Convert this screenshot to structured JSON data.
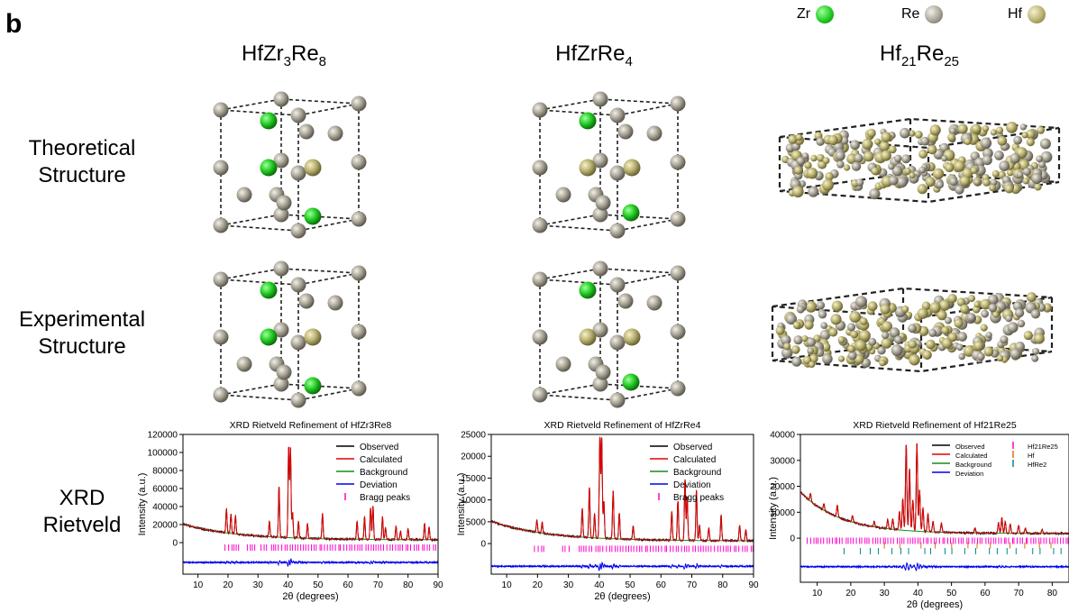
{
  "panel_label": "b",
  "legend": [
    {
      "label": "Zr",
      "color": "#22cc22"
    },
    {
      "label": "Re",
      "color": "#a8a394"
    },
    {
      "label": "Hf",
      "color": "#b8b070"
    }
  ],
  "columns": [
    {
      "formula": "HfZr",
      "sub1": "3",
      "mid": "Re",
      "sub2": "8",
      "plain": "HfZr3Re8"
    },
    {
      "formula": "HfZrRe",
      "sub1": "",
      "mid": "",
      "sub2": "4",
      "plain": "HfZrRe4"
    },
    {
      "formula": "Hf",
      "sub1": "21",
      "mid": "Re",
      "sub2": "25",
      "plain": "Hf21Re25"
    }
  ],
  "rows": {
    "theoretical": [
      "Theoretical",
      "Structure"
    ],
    "experimental": [
      "Experimental",
      "Structure"
    ],
    "xrd": [
      "XRD",
      "Rietveld"
    ]
  },
  "colors": {
    "re": "#a8a394",
    "zr": "#22cc22",
    "hf": "#b8b070"
  },
  "chart_data": [
    {
      "type": "line",
      "title": "XRD Rietveld Refinement of HfZr3Re8",
      "xlabel": "2θ (degrees)",
      "ylabel": "Intensity (a.u.)",
      "xlim": [
        5,
        90
      ],
      "ylim": [
        -35000,
        120000
      ],
      "yticks": [
        0,
        20000,
        40000,
        60000,
        80000,
        100000,
        120000
      ],
      "xticks": [
        10,
        20,
        30,
        40,
        50,
        60,
        70,
        80,
        90
      ],
      "legend": [
        "Observed",
        "Calculated",
        "Background",
        "Deviation",
        "Bragg peaks"
      ],
      "background": {
        "a": 17500,
        "b": 3000,
        "tau": 18
      },
      "peaks": [
        [
          19.5,
          26000
        ],
        [
          21,
          21000
        ],
        [
          22.5,
          20000
        ],
        [
          33.8,
          17000
        ],
        [
          37,
          56000
        ],
        [
          40.2,
          100000
        ],
        [
          40.8,
          100000
        ],
        [
          41.5,
          28000
        ],
        [
          43.5,
          18000
        ],
        [
          46.5,
          16000
        ],
        [
          51.5,
          28000
        ],
        [
          63,
          20000
        ],
        [
          65.5,
          25000
        ],
        [
          67.5,
          35000
        ],
        [
          68.3,
          37000
        ],
        [
          71.5,
          25000
        ],
        [
          72.5,
          13000
        ],
        [
          76,
          15000
        ],
        [
          77.5,
          9000
        ],
        [
          80,
          12000
        ],
        [
          85.5,
          18000
        ],
        [
          87,
          14000
        ]
      ],
      "bragg_y": -5500,
      "bragg": [
        [
          19,
          23.5
        ],
        [
          26,
          29
        ],
        [
          31,
          33
        ],
        [
          34,
          90
        ]
      ],
      "deviation_y": -22000
    },
    {
      "type": "line",
      "title": "XRD Rietveld Refinement of HfZrRe4",
      "xlabel": "2θ (degrees)",
      "ylabel": "Intensity (a.u.)",
      "xlim": [
        5,
        90
      ],
      "ylim": [
        -7000,
        25000
      ],
      "yticks": [
        0,
        5000,
        10000,
        15000,
        20000,
        25000
      ],
      "xticks": [
        10,
        20,
        30,
        40,
        50,
        60,
        70,
        80,
        90
      ],
      "legend": [
        "Observed",
        "Calculated",
        "Background",
        "Deviation",
        "Bragg peaks"
      ],
      "background": {
        "a": 4500,
        "b": 600,
        "tau": 18
      },
      "peaks": [
        [
          19.8,
          2800
        ],
        [
          21.5,
          2500
        ],
        [
          34.5,
          6500
        ],
        [
          36.8,
          11500
        ],
        [
          38.5,
          5500
        ],
        [
          40.2,
          23000
        ],
        [
          40.8,
          23000
        ],
        [
          41.5,
          8500
        ],
        [
          44.5,
          11000
        ],
        [
          46.5,
          5800
        ],
        [
          51,
          3000
        ],
        [
          63.5,
          6500
        ],
        [
          65.5,
          9000
        ],
        [
          67.8,
          14000
        ],
        [
          68.5,
          10000
        ],
        [
          71.5,
          11500
        ],
        [
          72.5,
          3500
        ],
        [
          75.5,
          2800
        ],
        [
          79.5,
          5800
        ],
        [
          85.5,
          3500
        ],
        [
          87.5,
          2500
        ]
      ],
      "bragg_y": -1200,
      "bragg": [
        [
          19,
          22
        ],
        [
          28,
          30
        ],
        [
          33,
          90
        ]
      ],
      "deviation_y": -5200
    },
    {
      "type": "line",
      "title": "XRD Rietveld Refinement of Hf21Re25",
      "xlabel": "2θ (degrees)",
      "ylabel": "Intensity (a.u.)",
      "xlim": [
        5,
        85
      ],
      "ylim": [
        -17000,
        40000
      ],
      "yticks": [
        0,
        10000,
        20000,
        30000,
        40000
      ],
      "xticks": [
        10,
        20,
        30,
        40,
        50,
        60,
        70,
        80
      ],
      "legend": [
        "Observed",
        "Calculated",
        "Background",
        "Deviation",
        "Hf21Re25",
        "Hf",
        "HfRe2"
      ],
      "background": {
        "a": 16000,
        "b": 1800,
        "tau": 12
      },
      "peaks": [
        [
          8,
          3000
        ],
        [
          12,
          2500
        ],
        [
          16,
          4500
        ],
        [
          20.5,
          2500
        ],
        [
          27,
          2000
        ],
        [
          31,
          3500
        ],
        [
          32.5,
          4000
        ],
        [
          34.5,
          7000
        ],
        [
          35.5,
          12000
        ],
        [
          36.5,
          33000
        ],
        [
          37.5,
          24000
        ],
        [
          38.5,
          12000
        ],
        [
          39.7,
          34000
        ],
        [
          40.5,
          16000
        ],
        [
          41.5,
          9000
        ],
        [
          43,
          7000
        ],
        [
          44.5,
          4000
        ],
        [
          47,
          3500
        ],
        [
          57,
          2000
        ],
        [
          64,
          4000
        ],
        [
          65,
          6000
        ],
        [
          66,
          4500
        ],
        [
          67.5,
          3500
        ],
        [
          70,
          3000
        ],
        [
          72,
          2000
        ],
        [
          77,
          1500
        ]
      ],
      "bragg_y": -1000,
      "bragg2_y": -2800,
      "bragg3_y": -5000,
      "bragg": [
        [
          7,
          85
        ]
      ],
      "deviation_y": -11000
    }
  ]
}
